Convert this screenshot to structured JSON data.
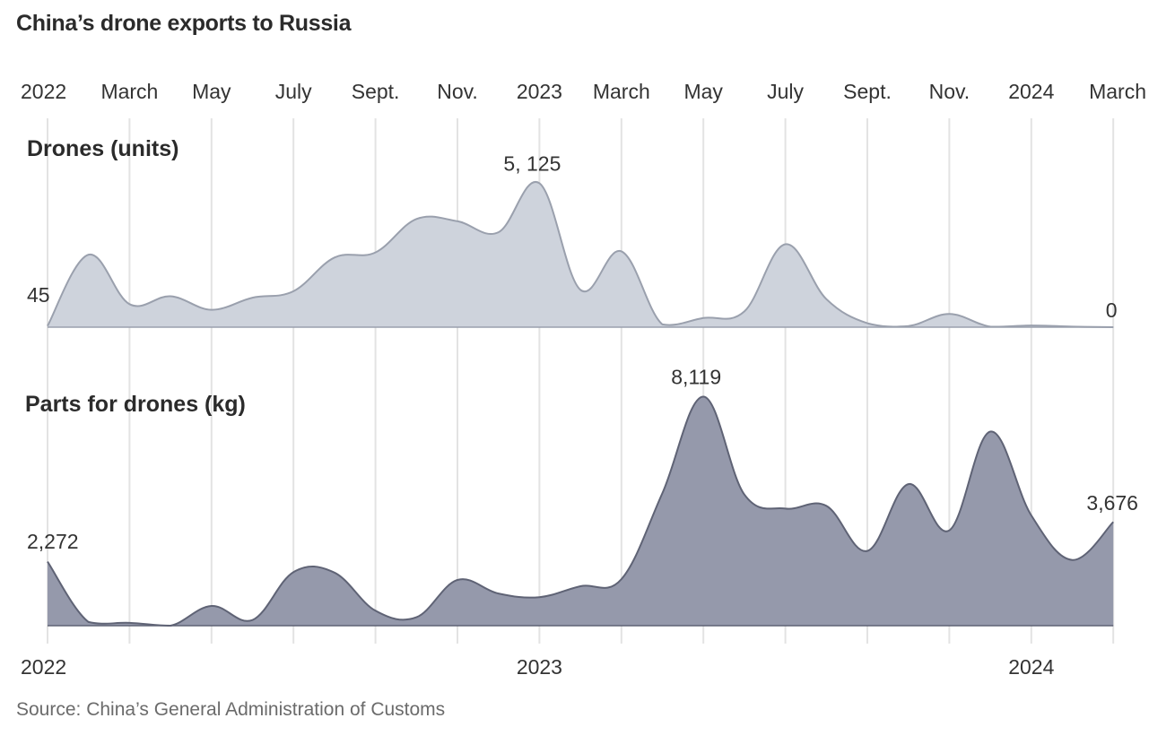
{
  "title": "China’s drone exports to Russia",
  "source": "Source: China’s General Administration of Customs",
  "colors": {
    "drones_fill": "#ced3dc",
    "drones_line": "#9aa0ad",
    "parts_fill": "#9599ab",
    "parts_line": "#5f6375",
    "gridline": "#e3e3e3",
    "baseline": "#dddddd"
  },
  "chart_data": {
    "type": "area",
    "x_axis": {
      "top_ticks": [
        "2022",
        "March",
        "May",
        "July",
        "Sept.",
        "Nov.",
        "2023",
        "March",
        "May",
        "July",
        "Sept.",
        "Nov.",
        "2024",
        "March"
      ],
      "top_tick_months": [
        "2022-01",
        "2022-03",
        "2022-05",
        "2022-07",
        "2022-09",
        "2022-11",
        "2023-01",
        "2023-03",
        "2023-05",
        "2023-07",
        "2023-09",
        "2023-11",
        "2024-01",
        "2024-03"
      ],
      "bottom_ticks": [
        "2022",
        "2023",
        "2024"
      ],
      "bottom_tick_months": [
        "2022-01",
        "2023-01",
        "2024-01"
      ],
      "range": [
        "2022-01",
        "2024-03"
      ],
      "grid": true
    },
    "series": [
      {
        "name": "Drones (units)",
        "x": [
          "2022-01",
          "2022-02",
          "2022-03",
          "2022-04",
          "2022-05",
          "2022-06",
          "2022-07",
          "2022-08",
          "2022-09",
          "2022-10",
          "2022-11",
          "2022-12",
          "2023-01",
          "2023-02",
          "2023-03",
          "2023-04",
          "2023-05",
          "2023-06",
          "2023-07",
          "2023-08",
          "2023-09",
          "2023-10",
          "2023-11",
          "2023-12",
          "2024-01",
          "2024-02",
          "2024-03"
        ],
        "values": [
          45,
          2580,
          820,
          1100,
          620,
          1050,
          1280,
          2480,
          2660,
          3850,
          3770,
          3380,
          5125,
          1330,
          2700,
          100,
          330,
          560,
          2950,
          1000,
          140,
          40,
          470,
          20,
          60,
          20,
          0
        ],
        "start_label": "45",
        "peak_label": "5, 125",
        "end_label": "0",
        "ylim": [
          0,
          5200
        ]
      },
      {
        "name": "Parts for drones (kg)",
        "x": [
          "2022-01",
          "2022-02",
          "2022-03",
          "2022-04",
          "2022-05",
          "2022-06",
          "2022-07",
          "2022-08",
          "2022-09",
          "2022-10",
          "2022-11",
          "2022-12",
          "2023-01",
          "2023-02",
          "2023-03",
          "2023-04",
          "2023-05",
          "2023-06",
          "2023-07",
          "2023-08",
          "2023-09",
          "2023-10",
          "2023-11",
          "2023-12",
          "2024-01",
          "2024-02",
          "2024-03"
        ],
        "values": [
          2272,
          130,
          100,
          0,
          700,
          200,
          1900,
          1880,
          530,
          300,
          1620,
          1140,
          1010,
          1400,
          1650,
          4700,
          8119,
          4650,
          4150,
          4250,
          2650,
          5020,
          3380,
          6880,
          3910,
          2330,
          3676
        ],
        "start_label": "2,272",
        "peak_label": "8,119",
        "end_label": "3,676",
        "ylim": [
          0,
          8200
        ]
      }
    ]
  }
}
